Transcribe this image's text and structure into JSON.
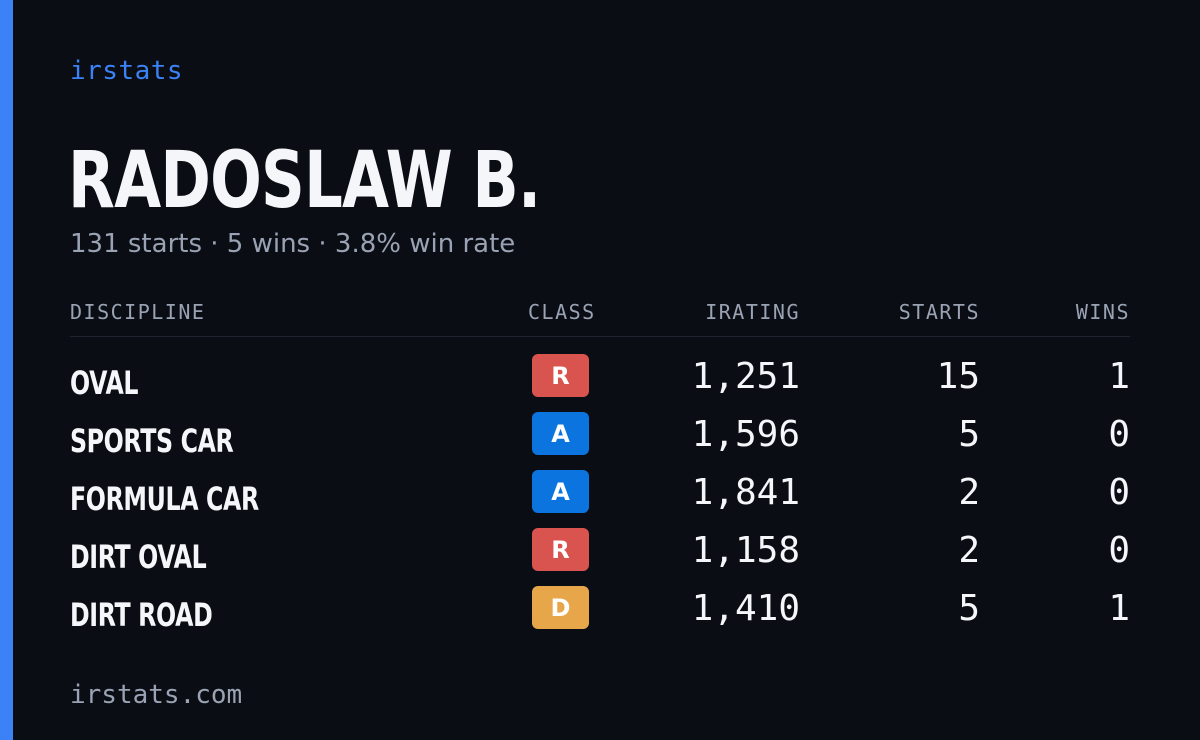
{
  "brand": "irstats",
  "driver": {
    "name": "RADOSLAW B.",
    "summary": "131 starts · 5 wins · 3.8% win rate"
  },
  "table": {
    "headers": {
      "discipline": "DISCIPLINE",
      "class": "CLASS",
      "irating": "IRATING",
      "starts": "STARTS",
      "wins": "WINS"
    },
    "rows": [
      {
        "discipline": "OVAL",
        "class": "R",
        "class_color": "#d9534f",
        "irating": "1,251",
        "starts": "15",
        "wins": "1"
      },
      {
        "discipline": "SPORTS CAR",
        "class": "A",
        "class_color": "#0b74de",
        "irating": "1,596",
        "starts": "5",
        "wins": "0"
      },
      {
        "discipline": "FORMULA CAR",
        "class": "A",
        "class_color": "#0b74de",
        "irating": "1,841",
        "starts": "2",
        "wins": "0"
      },
      {
        "discipline": "DIRT OVAL",
        "class": "R",
        "class_color": "#d9534f",
        "irating": "1,158",
        "starts": "2",
        "wins": "0"
      },
      {
        "discipline": "DIRT ROAD",
        "class": "D",
        "class_color": "#e8a64a",
        "irating": "1,410",
        "starts": "5",
        "wins": "1"
      }
    ]
  },
  "footer": {
    "url": "irstats.com"
  },
  "colors": {
    "background": "#0b0d14",
    "accent": "#3b82f6",
    "muted_text": "#9aa3b4",
    "primary_text": "#f5f6fa"
  }
}
